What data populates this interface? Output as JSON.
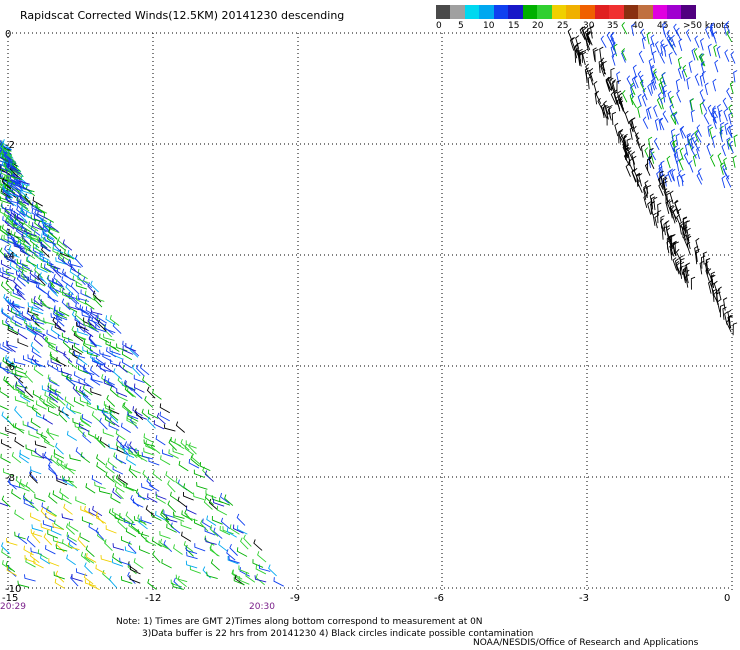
{
  "title": "Rapidscat Corrected Winds(12.5KM) 20141230 descending",
  "legend": {
    "colors": [
      "#4a4a4a",
      "#a0a0a0",
      "#00d8f0",
      "#00a8f0",
      "#1040f0",
      "#1818c8",
      "#00b000",
      "#30d030",
      "#f0d000",
      "#f0b000",
      "#f06000",
      "#e02020",
      "#f03030",
      "#8a3010",
      "#c07040",
      "#e000e0",
      "#a000d0",
      "#500080"
    ],
    "labels": [
      "0",
      "5",
      "10",
      "15",
      "20",
      "25",
      "30",
      "35",
      "40",
      "45",
      ">50 knots"
    ]
  },
  "axes": {
    "x_ticks": [
      "-15",
      "-12",
      "-9",
      "-6",
      "-3",
      "0"
    ],
    "y_ticks": [
      "0",
      "-2",
      "-4",
      "-6",
      "-8",
      "-10"
    ]
  },
  "times": {
    "left": "20:29",
    "right": "20:30"
  },
  "notes": {
    "line1": "Note: 1) Times are GMT 2)Times along bottom correspond to measurement at 0N",
    "line2": "3)Data buffer is 22 hrs from 20141230 4) Black circles indicate possible contamination"
  },
  "credit": "NOAA/NESDIS/Office of Research and Applications"
}
